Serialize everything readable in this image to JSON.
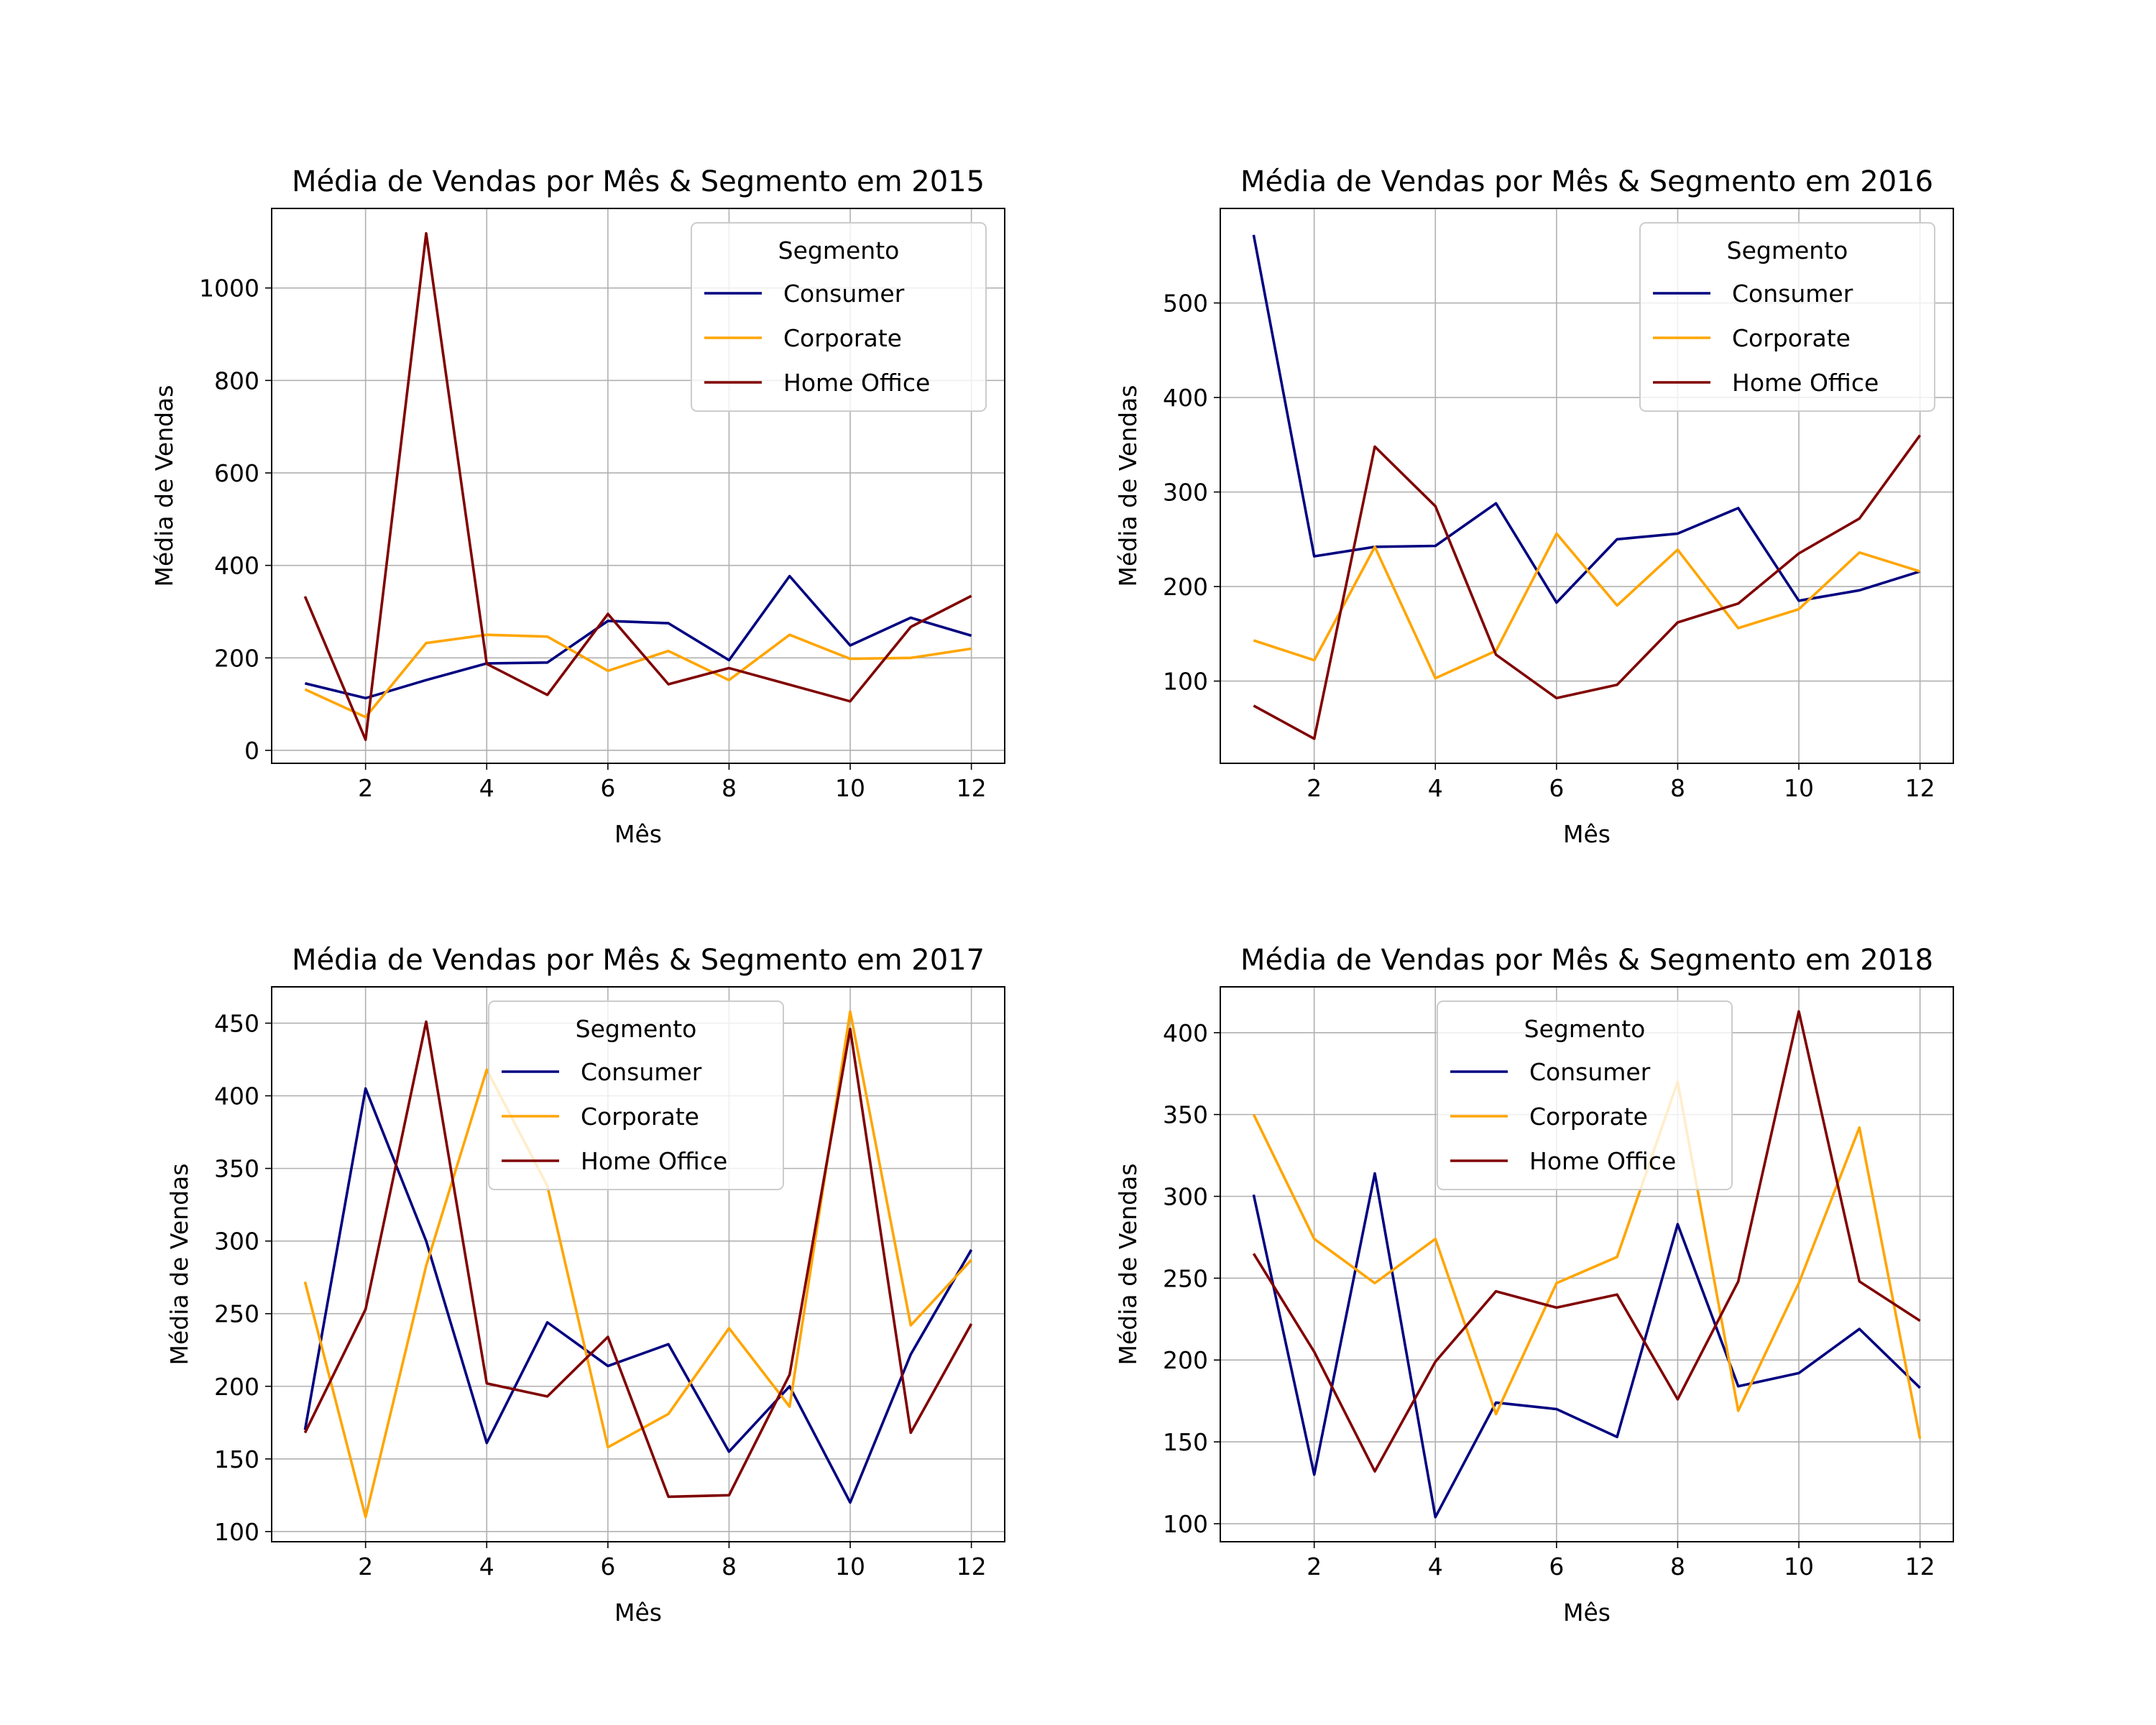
{
  "chart_data": [
    {
      "type": "line",
      "title": "Média de Vendas por Mês & Segmento em 2015",
      "xlabel": "Mês",
      "ylabel": "Média de Vendas",
      "x": [
        1,
        2,
        3,
        4,
        5,
        6,
        7,
        8,
        9,
        10,
        11,
        12
      ],
      "xticks": [
        2,
        4,
        6,
        8,
        10,
        12
      ],
      "xlim": [
        0.45,
        12.55
      ],
      "ylim": [
        -28,
        1172
      ],
      "yticks": [
        0,
        200,
        400,
        600,
        800,
        1000
      ],
      "grid": true,
      "legend": {
        "title": "Segmento",
        "placement": "top-right"
      },
      "series": [
        {
          "name": "Consumer",
          "color": "#000080",
          "values": [
            145,
            113,
            152,
            188,
            190,
            280,
            275,
            195,
            377,
            227,
            287,
            248
          ]
        },
        {
          "name": "Corporate",
          "color": "#FFA500",
          "values": [
            132,
            72,
            232,
            250,
            246,
            172,
            215,
            152,
            250,
            198,
            200,
            220
          ]
        },
        {
          "name": "Home Office",
          "color": "#800000",
          "values": [
            333,
            23,
            1118,
            187,
            120,
            295,
            143,
            178,
            142,
            106,
            267,
            334
          ]
        }
      ]
    },
    {
      "type": "line",
      "title": "Média de Vendas por Mês & Segmento em 2016",
      "xlabel": "Mês",
      "ylabel": "Média de Vendas",
      "x": [
        1,
        2,
        3,
        4,
        5,
        6,
        7,
        8,
        9,
        10,
        11,
        12
      ],
      "xticks": [
        2,
        4,
        6,
        8,
        10,
        12
      ],
      "xlim": [
        0.45,
        12.55
      ],
      "ylim": [
        13,
        600
      ],
      "yticks": [
        100,
        200,
        300,
        400,
        500
      ],
      "grid": true,
      "legend": {
        "title": "Segmento",
        "placement": "top-right"
      },
      "series": [
        {
          "name": "Consumer",
          "color": "#000080",
          "values": [
            572,
            232,
            242,
            243,
            288,
            183,
            250,
            256,
            283,
            185,
            196,
            216
          ]
        },
        {
          "name": "Corporate",
          "color": "#FFA500",
          "values": [
            143,
            122,
            242,
            103,
            132,
            256,
            180,
            239,
            156,
            176,
            236,
            216
          ]
        },
        {
          "name": "Home Office",
          "color": "#800000",
          "values": [
            74,
            39,
            348,
            285,
            128,
            82,
            96,
            162,
            182,
            235,
            272,
            360
          ]
        }
      ]
    },
    {
      "type": "line",
      "title": "Média de Vendas por Mês & Segmento em 2017",
      "xlabel": "Mês",
      "ylabel": "Média de Vendas",
      "x": [
        1,
        2,
        3,
        4,
        5,
        6,
        7,
        8,
        9,
        10,
        11,
        12
      ],
      "xticks": [
        2,
        4,
        6,
        8,
        10,
        12
      ],
      "xlim": [
        0.45,
        12.55
      ],
      "ylim": [
        93,
        475
      ],
      "yticks": [
        100,
        150,
        200,
        250,
        300,
        350,
        400,
        450
      ],
      "grid": true,
      "legend": {
        "title": "Segmento",
        "placement": "upper center"
      },
      "series": [
        {
          "name": "Consumer",
          "color": "#000080",
          "values": [
            170,
            405,
            300,
            161,
            244,
            214,
            229,
            155,
            200,
            120,
            222,
            294
          ]
        },
        {
          "name": "Corporate",
          "color": "#FFA500",
          "values": [
            272,
            110,
            283,
            418,
            338,
            158,
            181,
            240,
            186,
            458,
            242,
            287
          ]
        },
        {
          "name": "Home Office",
          "color": "#800000",
          "values": [
            168,
            253,
            451,
            202,
            193,
            234,
            124,
            125,
            208,
            446,
            168,
            243
          ]
        }
      ]
    },
    {
      "type": "line",
      "title": "Média de Vendas por Mês & Segmento em 2018",
      "xlabel": "Mês",
      "ylabel": "Média de Vendas",
      "x": [
        1,
        2,
        3,
        4,
        5,
        6,
        7,
        8,
        9,
        10,
        11,
        12
      ],
      "xticks": [
        2,
        4,
        6,
        8,
        10,
        12
      ],
      "xlim": [
        0.45,
        12.55
      ],
      "ylim": [
        89,
        428
      ],
      "yticks": [
        100,
        150,
        200,
        250,
        300,
        350,
        400
      ],
      "grid": true,
      "legend": {
        "title": "Segmento",
        "placement": "upper center"
      },
      "series": [
        {
          "name": "Consumer",
          "color": "#000080",
          "values": [
            301,
            130,
            314,
            104,
            174,
            170,
            153,
            283,
            184,
            192,
            219,
            183
          ]
        },
        {
          "name": "Corporate",
          "color": "#FFA500",
          "values": [
            350,
            274,
            247,
            274,
            167,
            247,
            263,
            370,
            169,
            247,
            342,
            152
          ]
        },
        {
          "name": "Home Office",
          "color": "#800000",
          "values": [
            265,
            205,
            132,
            199,
            242,
            232,
            240,
            176,
            248,
            413,
            248,
            224
          ]
        }
      ]
    }
  ]
}
